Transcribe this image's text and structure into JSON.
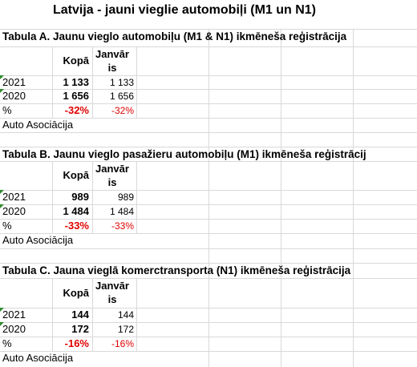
{
  "title": "Latvija - jauni vieglie automobiļi (M1 un N1)",
  "tables": [
    {
      "title": "Tabula A. Jaunu vieglo automobiļu (M1 & N1) ikmēneša reģistrācija",
      "header": [
        "Kopā",
        "Janvāris"
      ],
      "rows": [
        [
          "2021",
          "1 133",
          "1 133"
        ],
        [
          "2020",
          "1 656",
          "1 656"
        ],
        [
          "%",
          "-32%",
          "-32%"
        ]
      ],
      "source": "Auto Asociācija"
    },
    {
      "title": "Tabula B. Jaunu vieglo pasažieru automobiļu (M1) ikmēneša reģistrācij",
      "header": [
        "Kopā",
        "Janvāris"
      ],
      "rows": [
        [
          "2021",
          "989",
          "989"
        ],
        [
          "2020",
          "1 484",
          "1 484"
        ],
        [
          "%",
          "-33%",
          "-33%"
        ]
      ],
      "source": "Auto Asociācija"
    },
    {
      "title": "Tabula C. Jauna vieglā komerctransporta (N1) ikmēneša reģistrācija",
      "header": [
        "Kopā",
        "Janvāris"
      ],
      "rows": [
        [
          "2021",
          "144",
          "144"
        ],
        [
          "2020",
          "172",
          "172"
        ],
        [
          "%",
          "-16%",
          "-16%"
        ]
      ],
      "source": "Auto Asociācija"
    }
  ]
}
